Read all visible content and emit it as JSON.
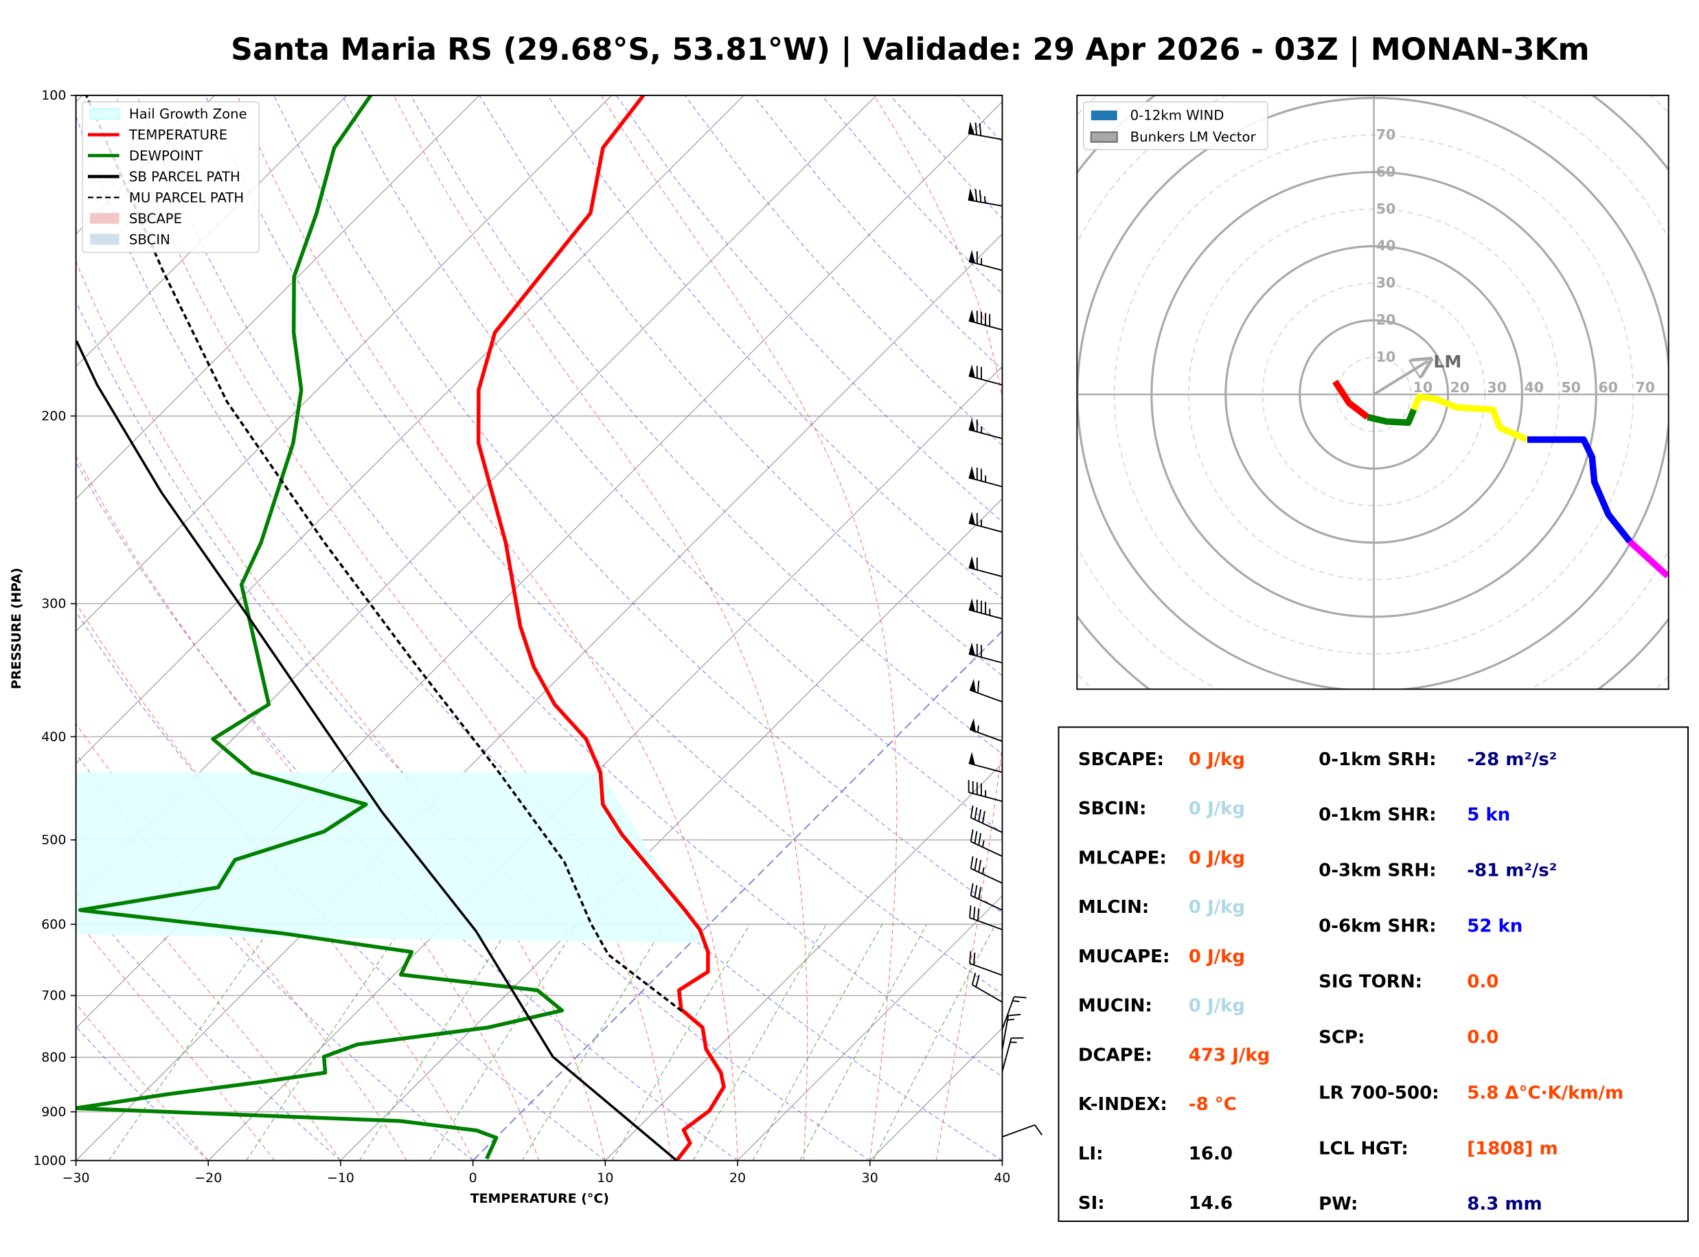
{
  "title": "Santa Maria RS (29.68°S, 53.81°W) | Validade: 29 Apr 2026 - 03Z | MONAN-3Km",
  "chart_data": [
    {
      "type": "line",
      "kind": "skew-t log-p",
      "xlabel": "TEMPERATURE (°C)",
      "ylabel": "PRESSURE (HPA)",
      "xlim": [
        -30,
        40
      ],
      "ylim": [
        1000,
        100
      ],
      "y_scale": "log",
      "grid": true,
      "legend_position": "top-left",
      "x_ticks": [
        "−30",
        "−20",
        "−10",
        "0",
        "10",
        "20",
        "30",
        "40"
      ],
      "x_tick_values": [
        -30,
        -20,
        -10,
        0,
        10,
        20,
        30,
        40
      ],
      "y_ticks": [
        "100",
        "200",
        "300",
        "400",
        "500",
        "600",
        "700",
        "800",
        "900",
        "1000"
      ],
      "y_tick_values": [
        100,
        200,
        300,
        400,
        500,
        600,
        700,
        800,
        900,
        1000
      ],
      "legend": [
        {
          "label": "Hail Growth Zone",
          "color": "#e0ffff",
          "style": "patch"
        },
        {
          "label": "TEMPERATURE",
          "color": "#ff0000",
          "style": "line"
        },
        {
          "label": "DEWPOINT",
          "color": "#008000",
          "style": "line"
        },
        {
          "label": "SB PARCEL PATH",
          "color": "#000000",
          "style": "line"
        },
        {
          "label": "MU PARCEL PATH",
          "color": "#000000",
          "style": "dashed"
        },
        {
          "label": "SBCAPE",
          "color": "#f4c7c7",
          "style": "patch"
        },
        {
          "label": "SBCIN",
          "color": "#cfe0ec",
          "style": "patch"
        }
      ],
      "series": [
        {
          "name": "TEMPERATURE",
          "color": "#ff0000",
          "p": [
            1000,
            963,
            936,
            898,
            853,
            827,
            786,
            750,
            721,
            692,
            665,
            637,
            607,
            582,
            494,
            463,
            432,
            402,
            373,
            344,
            315,
            263,
            212,
            189,
            167,
            129,
            112,
            100
          ],
          "t": [
            15.4,
            15.1,
            13.6,
            14.1,
            13.4,
            12.1,
            9.2,
            7.3,
            4.3,
            2.7,
            3.5,
            2.0,
            -0.3,
            -2.9,
            -13.4,
            -17.1,
            -19.7,
            -23.3,
            -28.3,
            -32.7,
            -36.8,
            -44.2,
            -53.8,
            -57.8,
            -60.9,
            -62.7,
            -66.7,
            -67.6
          ]
        },
        {
          "name": "DEWPOINT",
          "color": "#008000",
          "p": [
            996,
            952,
            937,
            918,
            893,
            866,
            844,
            827,
            799,
            778,
            750,
            723,
            692,
            669,
            637,
            612,
            582,
            554,
            522,
            491,
            463,
            432,
            402,
            373,
            288,
            263,
            212,
            189,
            167,
            148,
            129,
            112,
            100
          ],
          "t": [
            0.9,
            0.05,
            -2.0,
            -8.5,
            -34,
            -28,
            -22,
            -17.8,
            -19.1,
            -17.5,
            -8.9,
            -4.6,
            -8.0,
            -19.5,
            -20.4,
            -31.5,
            -48.6,
            -39.9,
            -40.7,
            -36.1,
            -35,
            -46,
            -51.5,
            -49.9,
            -61.0,
            -62.7,
            -67.8,
            -71.2,
            -76.1,
            -80.3,
            -83.4,
            -87,
            -88.2
          ]
        },
        {
          "name": "SB PARCEL PATH",
          "color": "#000000",
          "p": [
            1000,
            799,
            609,
            470,
            309,
            236,
            187,
            170
          ],
          "t": [
            15.4,
            -1.8,
            -17.1,
            -33.3,
            -58,
            -74,
            -87,
            -91.9
          ]
        },
        {
          "name": "MU PARCEL PATH",
          "color": "#000000",
          "dashed": true,
          "p": [
            724,
            641,
            599,
            524,
            429,
            339,
            263,
            194,
            146,
            100
          ],
          "t": [
            4.5,
            -5.3,
            -9.0,
            -15.7,
            -27.8,
            -42.4,
            -57.9,
            -75.9,
            -90.7,
            -109.7
          ]
        }
      ],
      "hail_growth_zone_hpa": [
        625,
        432
      ],
      "wind_barbs": {
        "p": [
          110,
          127,
          146,
          166,
          187,
          210,
          233,
          257,
          283,
          310,
          341,
          371,
          404,
          432,
          460,
          492,
          518,
          549,
          582,
          607,
          670,
          710,
          753,
          787,
          825,
          950
        ],
        "dir": [
          280,
          280,
          285,
          285,
          285,
          285,
          285,
          285,
          285,
          285,
          285,
          290,
          290,
          285,
          285,
          295,
          295,
          295,
          295,
          290,
          290,
          300,
          20,
          10,
          15,
          70
        ],
        "speed": [
          70,
          75,
          65,
          90,
          70,
          65,
          75,
          65,
          60,
          85,
          70,
          60,
          55,
          50,
          45,
          40,
          35,
          35,
          30,
          30,
          20,
          20,
          15,
          15,
          15,
          10
        ]
      }
    },
    {
      "type": "line",
      "kind": "hodograph",
      "units": "kn",
      "ring_labels": [
        "10",
        "20",
        "30",
        "40",
        "50",
        "60",
        "70"
      ],
      "ring_values": [
        10,
        20,
        30,
        40,
        50,
        60,
        70
      ],
      "legend_position": "top-left",
      "legend": [
        {
          "label": "0-12km WIND",
          "color": "#1f77b4"
        },
        {
          "label": "Bunkers LM Vector",
          "color": "#a9a9a9"
        }
      ],
      "segments": [
        {
          "color": "#ff0000",
          "u": [
            -10.5,
            -8.5,
            -6.7,
            -1.7
          ],
          "v": [
            3.5,
            0.5,
            -2.3,
            -6.1
          ]
        },
        {
          "color": "#008000",
          "u": [
            -1.7,
            3.5,
            9.3,
            10.8
          ],
          "v": [
            -6.1,
            -7.3,
            -7.6,
            -4.1
          ]
        },
        {
          "color": "#ffff00",
          "u": [
            10.8,
            12.2,
            16.6,
            22.4,
            32.1,
            34.1,
            41.4
          ],
          "v": [
            -4.1,
            -0.6,
            -1.2,
            -3.5,
            -4.1,
            -9.0,
            -12.2
          ]
        },
        {
          "color": "#0000ff",
          "u": [
            41.4,
            56.6,
            58.9,
            59.5,
            63.3,
            69.1
          ],
          "v": [
            -12.2,
            -12.2,
            -16.9,
            -23.6,
            -32.4,
            -39.7
          ]
        },
        {
          "color": "#ff00ff",
          "u": [
            69.1,
            79.3
          ],
          "v": [
            -39.7,
            -49.0
          ]
        }
      ],
      "lm_vector": {
        "label": "LM",
        "u": 14.6,
        "v": 9.0
      }
    }
  ],
  "stats": {
    "left": [
      {
        "label": "SBCAPE:",
        "value": "0 J/kg",
        "color": "#ff4500"
      },
      {
        "label": "SBCIN:",
        "value": "0 J/kg",
        "color": "#add8e6"
      },
      {
        "label": "MLCAPE:",
        "value": "0 J/kg",
        "color": "#ff4500"
      },
      {
        "label": "MLCIN:",
        "value": "0 J/kg",
        "color": "#add8e6"
      },
      {
        "label": "MUCAPE:",
        "value": "0 J/kg",
        "color": "#ff4500"
      },
      {
        "label": "MUCIN:",
        "value": "0 J/kg",
        "color": "#add8e6"
      },
      {
        "label": "DCAPE:",
        "value": "473 J/kg",
        "color": "#ff4500"
      },
      {
        "label": "K-INDEX:",
        "value": "-8 °C",
        "color": "#ff4500"
      },
      {
        "label": "LI:",
        "value": "16.0",
        "color": "#000000"
      },
      {
        "label": "SI:",
        "value": "14.6",
        "color": "#000000"
      }
    ],
    "right": [
      {
        "label": "0-1km SRH:",
        "value": "-28 m²/s²",
        "color": "#000080"
      },
      {
        "label": "0-1km SHR:",
        "value": "5 kn",
        "color": "#0000ff"
      },
      {
        "label": "0-3km SRH:",
        "value": "-81 m²/s²",
        "color": "#000080"
      },
      {
        "label": "0-6km SHR:",
        "value": "52 kn",
        "color": "#0000ff"
      },
      {
        "label": "SIG TORN:",
        "value": "0.0",
        "color": "#ff4500"
      },
      {
        "label": "SCP:",
        "value": "0.0",
        "color": "#ff4500"
      },
      {
        "label": "LR 700-500:",
        "value": "5.8 Δ°C·K/km/m",
        "color": "#ff4500"
      },
      {
        "label": "LCL HGT:",
        "value": "[1808] m",
        "color": "#ff4500"
      },
      {
        "label": "PW:",
        "value": "8.3 mm",
        "color": "#000080"
      }
    ]
  }
}
